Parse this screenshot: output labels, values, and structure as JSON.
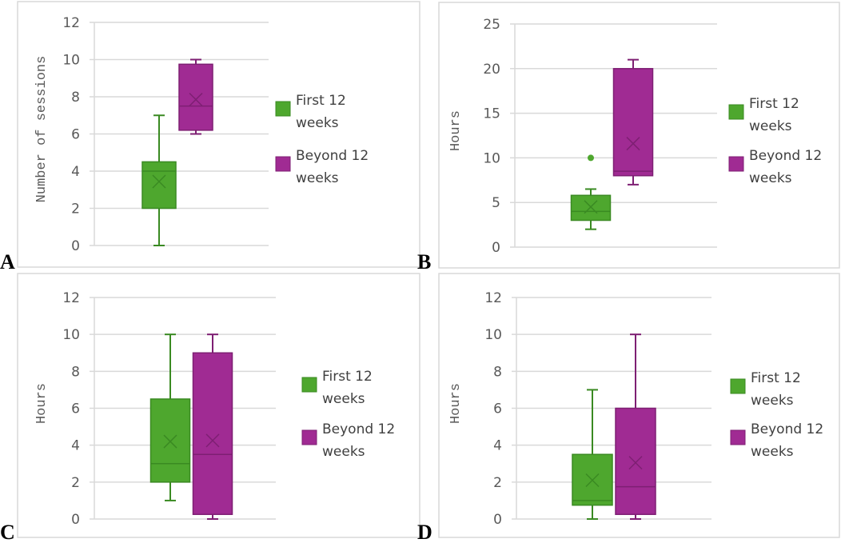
{
  "colors": {
    "first": "#4ea72e",
    "first_dark": "#3a8a22",
    "beyond": "#a02b93",
    "beyond_dark": "#7e1f73",
    "grid": "#d9d9d9"
  },
  "legend": {
    "first_line1": "First 12",
    "first_line2": "weeks",
    "beyond_line1": "Beyond 12",
    "beyond_line2": "weeks"
  },
  "chart_data": [
    {
      "type": "box",
      "panel": "A",
      "ylabel": "Number of sessions",
      "ylim": [
        0,
        12
      ],
      "ticks": [
        "0",
        "2",
        "4",
        "6",
        "8",
        "10",
        "12"
      ],
      "tick_values": [
        0,
        2,
        4,
        6,
        8,
        10,
        12
      ],
      "series": [
        {
          "name": "First 12 weeks",
          "min": 0,
          "q1": 2,
          "median": 4,
          "q3": 4.5,
          "max": 7,
          "mean": 3.44,
          "outliers": []
        },
        {
          "name": "Beyond 12 weeks",
          "min": 6,
          "q1": 6.2,
          "median": 7.5,
          "q3": 9.75,
          "max": 10,
          "mean": 7.85,
          "outliers": []
        }
      ]
    },
    {
      "type": "box",
      "panel": "B",
      "ylabel": "Hours",
      "ylim": [
        0,
        25
      ],
      "ticks": [
        "0",
        "5",
        "10",
        "15",
        "20",
        "25"
      ],
      "tick_values": [
        0,
        5,
        10,
        15,
        20,
        25
      ],
      "series": [
        {
          "name": "First 12 weeks",
          "min": 2,
          "q1": 3,
          "median": 4,
          "q3": 5.8,
          "max": 6.5,
          "mean": 4.5,
          "outliers": [
            10
          ]
        },
        {
          "name": "Beyond 12 weeks",
          "min": 7,
          "q1": 8,
          "median": 8.5,
          "q3": 20,
          "max": 21,
          "mean": 11.6,
          "outliers": []
        }
      ]
    },
    {
      "type": "box",
      "panel": "C",
      "ylabel": "Hours",
      "ylim": [
        0,
        12
      ],
      "ticks": [
        "0",
        "2",
        "4",
        "6",
        "8",
        "10",
        "12"
      ],
      "tick_values": [
        0,
        2,
        4,
        6,
        8,
        10,
        12
      ],
      "series": [
        {
          "name": "First 12 weeks",
          "min": 1,
          "q1": 2,
          "median": 3,
          "q3": 6.5,
          "max": 10,
          "mean": 4.2,
          "outliers": []
        },
        {
          "name": "Beyond 12 weeks",
          "min": 0,
          "q1": 0.25,
          "median": 3.5,
          "q3": 9,
          "max": 10,
          "mean": 4.25,
          "outliers": []
        }
      ]
    },
    {
      "type": "box",
      "panel": "D",
      "ylabel": "Hours",
      "ylim": [
        0,
        12
      ],
      "ticks": [
        "0",
        "2",
        "4",
        "6",
        "8",
        "10",
        "12"
      ],
      "tick_values": [
        0,
        2,
        4,
        6,
        8,
        10,
        12
      ],
      "series": [
        {
          "name": "First 12 weeks",
          "min": 0,
          "q1": 0.75,
          "median": 1,
          "q3": 3.5,
          "max": 7,
          "mean": 2.1,
          "outliers": []
        },
        {
          "name": "Beyond 12 weeks",
          "min": 0,
          "q1": 0.25,
          "median": 1.75,
          "q3": 6,
          "max": 10,
          "mean": 3.05,
          "outliers": []
        }
      ]
    }
  ]
}
